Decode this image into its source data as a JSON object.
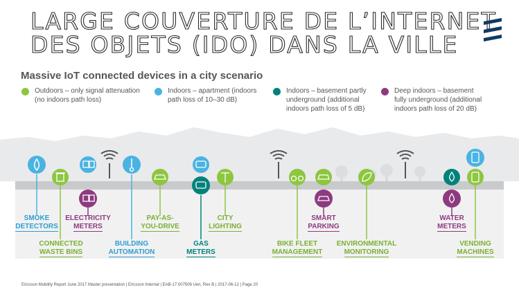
{
  "title": {
    "line1": "LARGE COUVERTURE DE L’INTERNET",
    "line2": "DES OBJETS (IDO) DANS LA VILLE"
  },
  "subtitle": "Massive IoT connected devices in a city scenario",
  "legend": [
    {
      "color": "#8dc63f",
      "line1": "Outdoors – only signal attenuation",
      "line2": "(no indoors path loss)"
    },
    {
      "color": "#4ab3e2",
      "line1": "Indoors – apartment (indoors",
      "line2": "path loss of 10–30 dB)"
    },
    {
      "color": "#00827b",
      "line1": "Indoors – basement partly",
      "line2": "underground (additional",
      "line3": "indoors path loss of 5 dB)"
    },
    {
      "color": "#8e3a80",
      "line1": "Deep indoors – basement",
      "line2": "fully underground (additional",
      "line3": "indoors path loss of 20 dB)"
    }
  ],
  "colors": {
    "outdoor": "#8dc63f",
    "indoor": "#4ab3e2",
    "basement": "#00827b",
    "deep": "#8e3a80",
    "logo": "#0f3a63"
  },
  "labels": {
    "smoke": {
      "l1": "SMOKE",
      "l2": "DETECTORS"
    },
    "waste": {
      "l1": "CONNECTED",
      "l2": "WASTE BINS"
    },
    "electricity": {
      "l1": "ELECTRICITY",
      "l2": "METERS"
    },
    "building": {
      "l1": "BUILDING",
      "l2": "AUTOMATION"
    },
    "payg": {
      "l1": "PAY-AS-",
      "l2": "YOU-DRIVE"
    },
    "gas": {
      "l1": "GAS",
      "l2": "METERS"
    },
    "city": {
      "l1": "CITY",
      "l2": "LIGHTING"
    },
    "bike": {
      "l1": "BIKE FLEET",
      "l2": "MANAGEMENT"
    },
    "parking": {
      "l1": "SMART",
      "l2": "PARKING"
    },
    "env": {
      "l1": "ENVIRONMENTAL",
      "l2": "MONITORING"
    },
    "water": {
      "l1": "WATER",
      "l2": "METERS"
    },
    "vending": {
      "l1": "VENDING",
      "l2": "MACHINES"
    }
  },
  "icons": [
    "flame-icon",
    "trash-bin-icon",
    "plug-icon",
    "thermometer-icon",
    "car-icon",
    "gas-meter-icon",
    "street-lamp-icon",
    "bicycle-icon",
    "parking-car-icon",
    "leaf-icon",
    "water-drop-icon",
    "vending-machine-icon",
    "cell-tower-icon"
  ],
  "footer": "Ericsson Mobility Report June 2017 Master presentation | Ericsson Internal | EAB-17:007506 Uen, Rev B | 2017-06-12 | Page 20"
}
